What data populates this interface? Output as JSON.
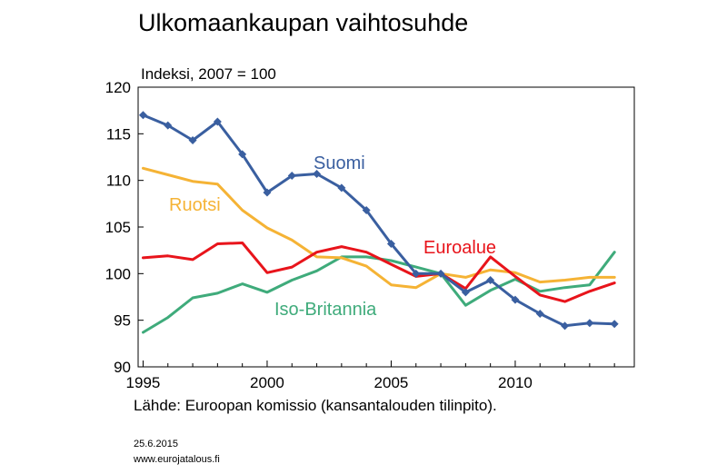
{
  "title": "Ulkomaankaupan vaihtosuhde",
  "subtitle": "Indeksi, 2007 = 100",
  "source": "Lähde: Euroopan komissio (kansantalouden tilinpito).",
  "date": "25.6.2015",
  "website": "www.eurojatalous.fi",
  "chart_data": {
    "type": "line",
    "x": [
      1995,
      1996,
      1997,
      1998,
      1999,
      2000,
      2001,
      2002,
      2003,
      2004,
      2005,
      2006,
      2007,
      2008,
      2009,
      2010,
      2011,
      2012,
      2013,
      2014
    ],
    "xlim": [
      1994.8,
      2014.8
    ],
    "ylim": [
      90,
      120
    ],
    "x_ticks": [
      1995,
      2000,
      2005,
      2010
    ],
    "y_ticks": [
      90,
      95,
      100,
      105,
      110,
      115,
      120
    ],
    "grid": false,
    "series": [
      {
        "name": "Suomi",
        "color": "#3a5fa0",
        "marker": "diamond",
        "values": [
          117.0,
          115.9,
          114.3,
          116.3,
          112.8,
          108.7,
          110.5,
          110.7,
          109.2,
          106.8,
          103.2,
          100.0,
          100.0,
          98.0,
          99.3,
          97.2,
          95.7,
          94.4,
          94.7,
          94.6
        ]
      },
      {
        "name": "Ruotsi",
        "color": "#f5b335",
        "marker": "none",
        "values": [
          111.3,
          110.6,
          109.9,
          109.6,
          106.8,
          104.9,
          103.6,
          101.8,
          101.7,
          100.8,
          98.8,
          98.5,
          100.0,
          99.6,
          100.4,
          100.1,
          99.1,
          99.3,
          99.6,
          99.6
        ]
      },
      {
        "name": "Euroalue",
        "color": "#e8141b",
        "marker": "none",
        "values": [
          101.7,
          101.9,
          101.5,
          103.2,
          103.3,
          100.1,
          100.7,
          102.3,
          102.9,
          102.3,
          101.0,
          99.7,
          100.0,
          98.4,
          101.8,
          99.7,
          97.7,
          97.0,
          98.1,
          99.0
        ]
      },
      {
        "name": "Iso-Britannia",
        "color": "#3fab7b",
        "marker": "none",
        "values": [
          93.7,
          95.3,
          97.4,
          97.9,
          98.9,
          98.0,
          99.3,
          100.3,
          101.8,
          101.8,
          101.4,
          100.7,
          100.0,
          96.6,
          98.2,
          99.4,
          98.1,
          98.5,
          98.8,
          102.3
        ]
      }
    ]
  }
}
